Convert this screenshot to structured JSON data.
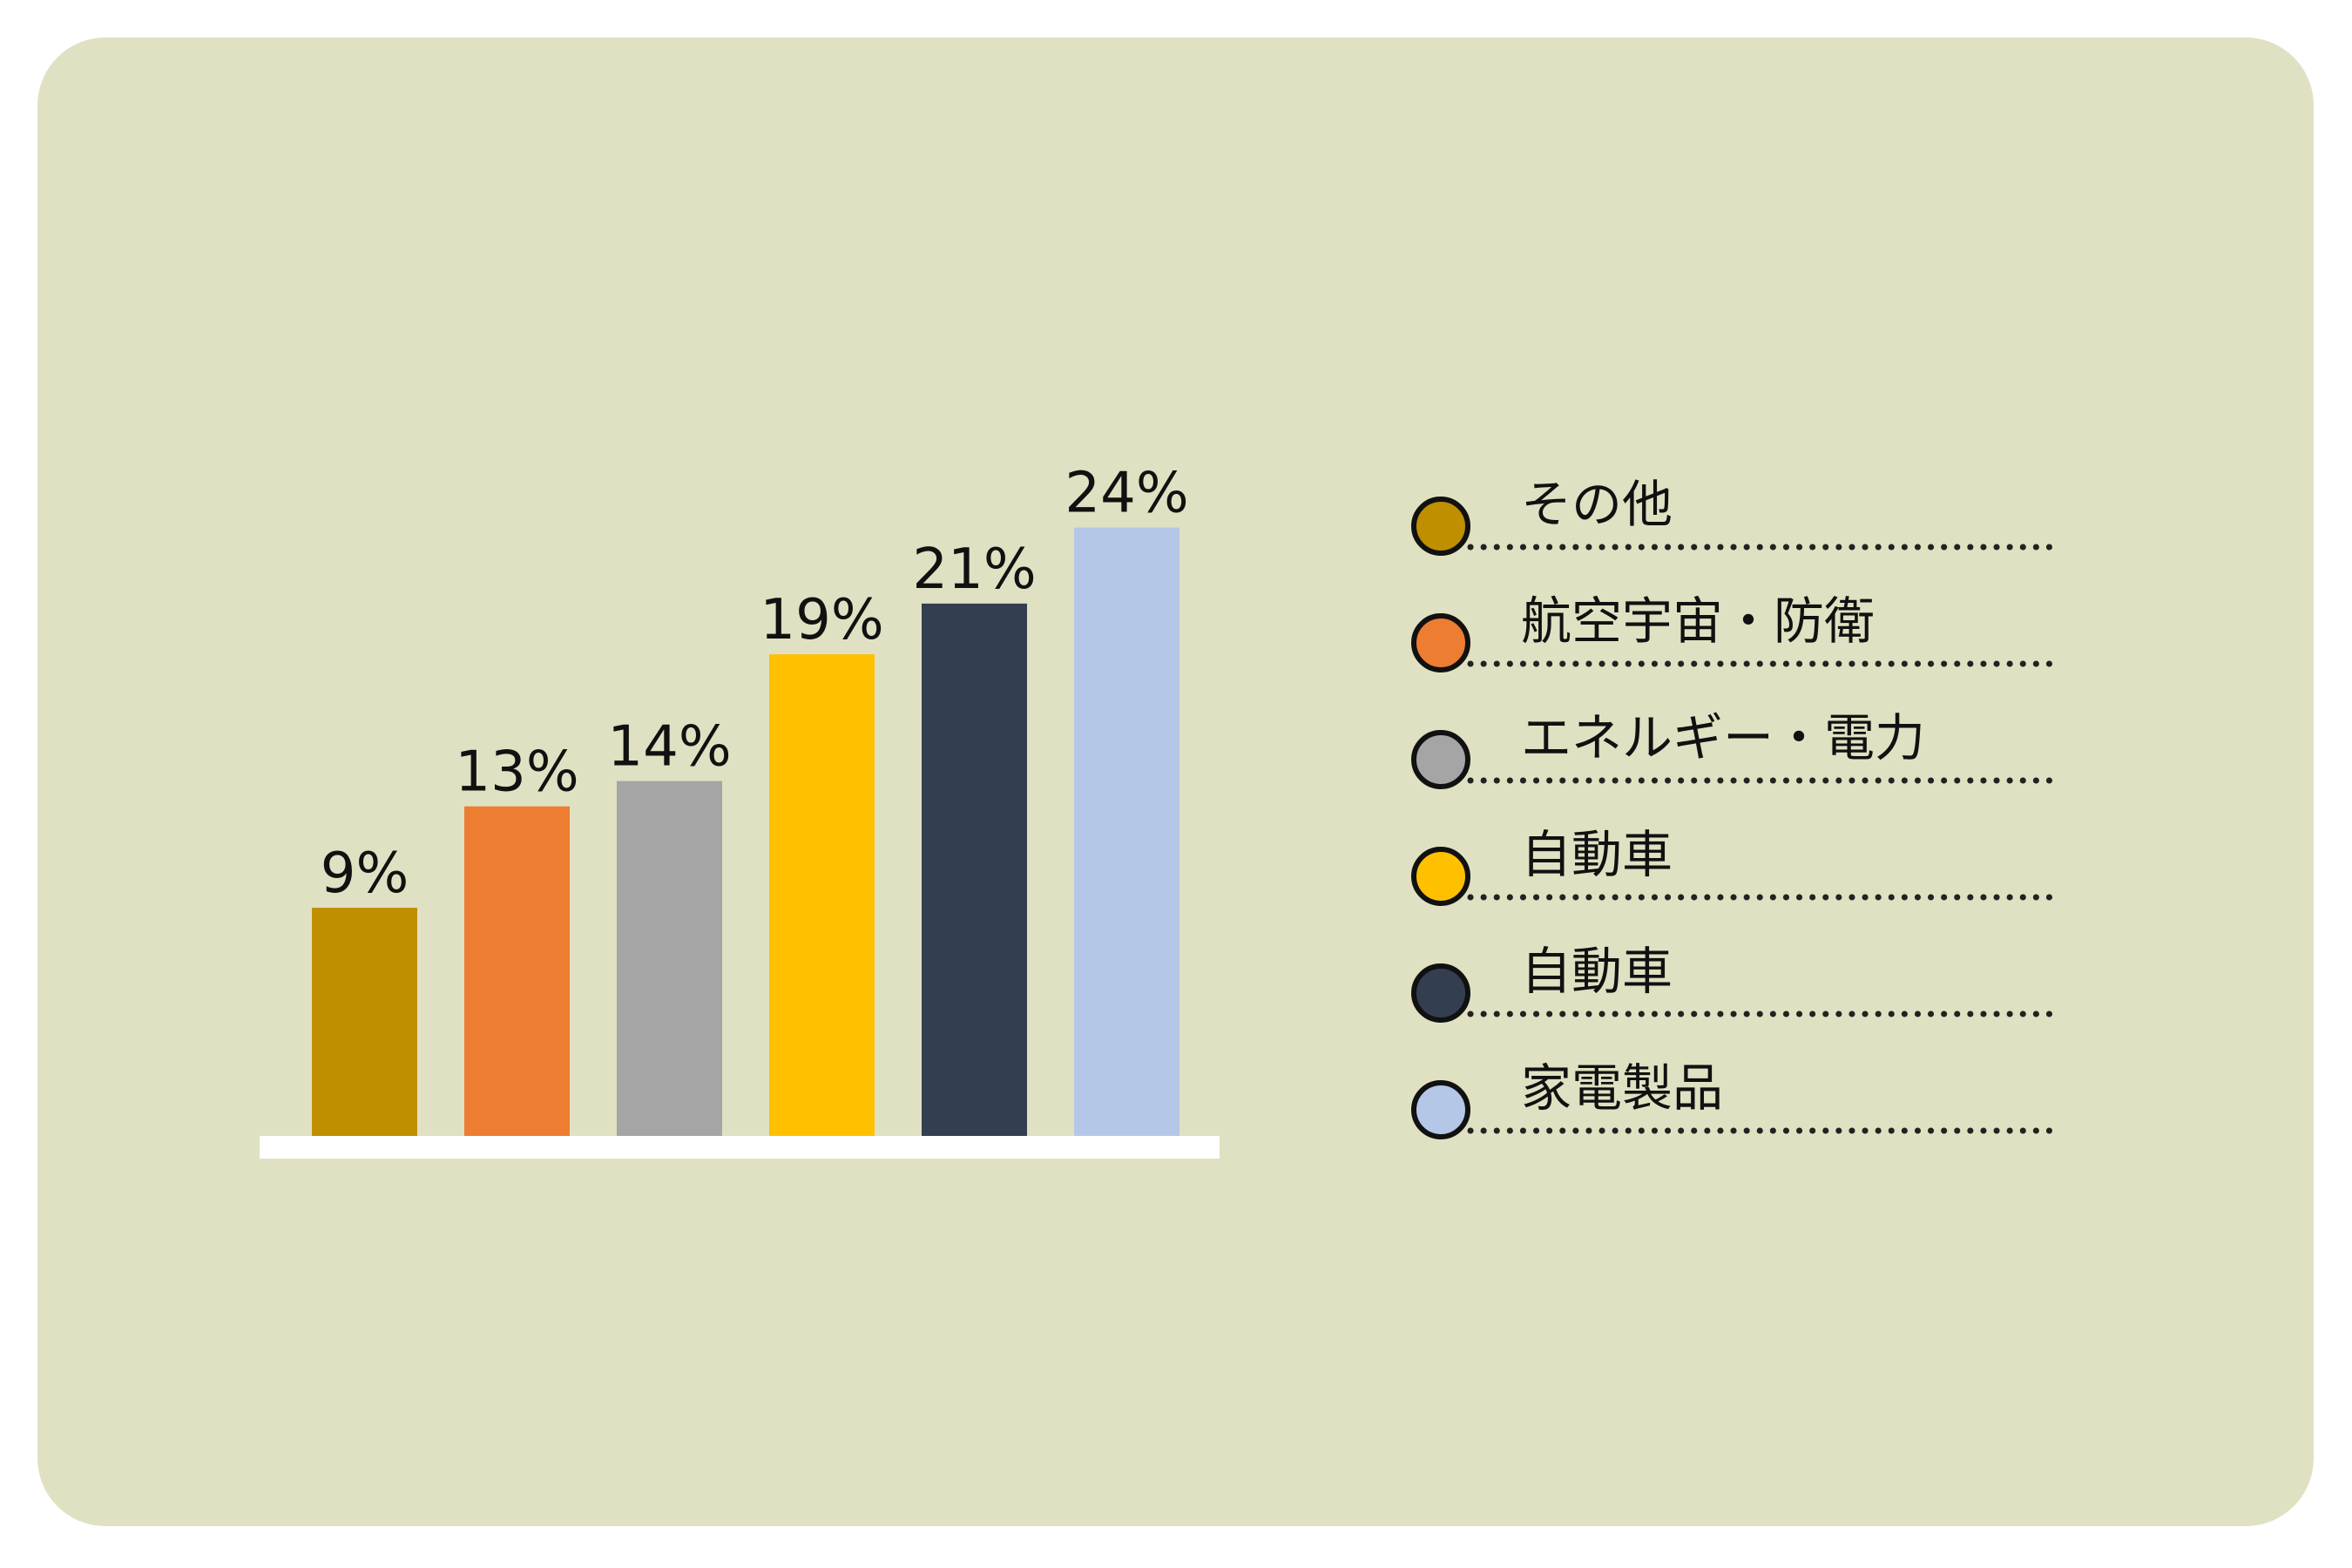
{
  "colors": {
    "background": "#e0e1c2",
    "baseline": "#ffffff"
  },
  "chart_data": {
    "type": "bar",
    "title": "",
    "xlabel": "",
    "ylabel": "",
    "ylim": [
      0,
      24
    ],
    "grid": false,
    "legend_position": "right",
    "categories": [
      "その他",
      "航空宇宙・防衛",
      "エネルギー・電力",
      "自動車",
      "自動車",
      "家電製品"
    ],
    "values": [
      9,
      13,
      14,
      19,
      21,
      24
    ],
    "value_labels": [
      "9%",
      "13%",
      "14%",
      "19%",
      "21%",
      "24%"
    ],
    "colors": [
      "#bf8f00",
      "#ed7d31",
      "#a5a5a5",
      "#ffc000",
      "#333f50",
      "#b4c7e7"
    ],
    "legend": [
      {
        "label": "その他",
        "color": "#bf8f00"
      },
      {
        "label": "航空宇宙・防衛",
        "color": "#ed7d31"
      },
      {
        "label": "エネルギー・電力",
        "color": "#a5a5a5"
      },
      {
        "label": "自動車",
        "color": "#ffc000"
      },
      {
        "label": "自動車",
        "color": "#333f50"
      },
      {
        "label": "家電製品",
        "color": "#b4c7e7"
      }
    ]
  }
}
